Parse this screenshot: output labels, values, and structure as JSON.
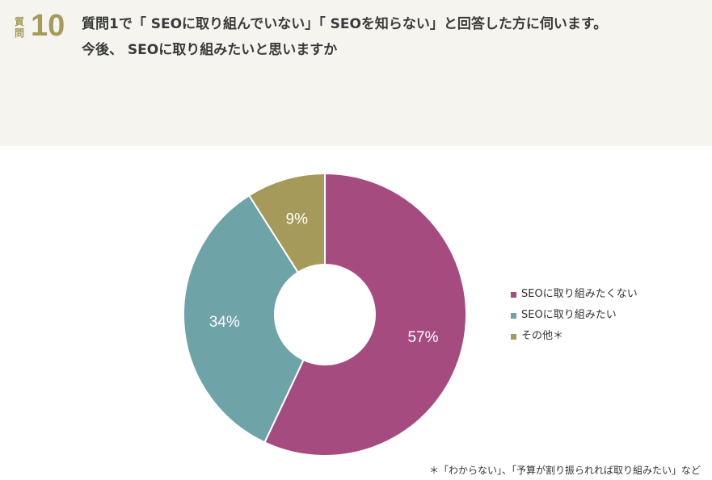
{
  "question": {
    "label": "質問",
    "number": "10",
    "line1": "質問1で「 SEOに取り組んでいない」「 SEOを知らない」と回答した方に伺います。",
    "line2": "今後、 SEOに取り組みたいと思いますか"
  },
  "chart_data": {
    "type": "pie",
    "donut": true,
    "categories": [
      "SEOに取り組みたくない",
      "SEOに取り組みたい",
      "その他＊"
    ],
    "values": [
      57,
      34,
      9
    ],
    "value_labels": [
      "57%",
      "34%",
      "9%"
    ],
    "colors": [
      "#a64b80",
      "#6ea3a8",
      "#a59a5a"
    ],
    "legend_position": "right"
  },
  "footnote": "＊「わからない」、「予算が割り振られれば取り組みたい」など"
}
